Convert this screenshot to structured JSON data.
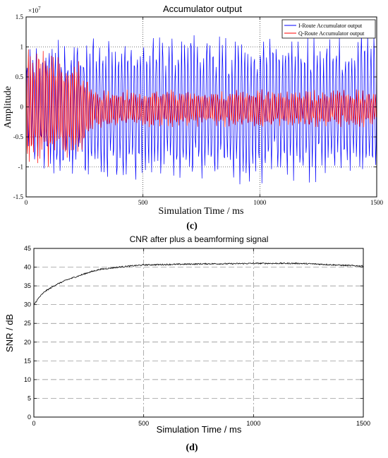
{
  "chart_data": [
    {
      "type": "line",
      "panel_label": "(c)",
      "title": "Accumulator output",
      "xlabel": "Simulation Time / ms",
      "ylabel": "Amplitude",
      "y_exponent_label": "×10",
      "y_exponent_power": "7",
      "xlim": [
        0,
        1500
      ],
      "ylim": [
        -1.5,
        1.5
      ],
      "x_ticks": [
        0,
        500,
        1000,
        1500
      ],
      "x_tick_labels": [
        "0",
        "500",
        "1000",
        "1500"
      ],
      "y_ticks": [
        -1.5,
        -1,
        -0.5,
        0,
        0.5,
        1,
        1.5
      ],
      "y_tick_labels": [
        "-1.5",
        "-1",
        "-0.5",
        "0",
        "0.5",
        "1",
        "1.5"
      ],
      "grid": "dotted",
      "legend_position": "top-right",
      "series": [
        {
          "name": "I-Route Accumulator output",
          "color": "#0000ff",
          "description_of_shape": "oscillates between about -1.3 and 1.3 across whole range after ~200 ms",
          "envelope": {
            "x": [
              0,
              200,
              1500
            ],
            "upper": [
              1.0,
              1.25,
              1.25
            ],
            "lower": [
              -1.0,
              -1.3,
              -1.3
            ]
          }
        },
        {
          "name": "Q-Route Accumulator output",
          "color": "#ff0000",
          "envelope": {
            "x": [
              0,
              100,
              230,
              300,
              1500
            ],
            "upper": [
              1.05,
              1.05,
              0.8,
              0.3,
              0.3
            ],
            "lower": [
              -1.05,
              -1.05,
              -0.8,
              -0.35,
              -0.35
            ]
          }
        }
      ]
    },
    {
      "type": "line",
      "panel_label": "(d)",
      "title": "CNR after plus a beamforming signal",
      "xlabel": "Simulation Time / ms",
      "ylabel": "SNR / dB",
      "xlim": [
        0,
        1500
      ],
      "ylim": [
        0,
        45
      ],
      "x_ticks": [
        0,
        500,
        1000,
        1500
      ],
      "x_tick_labels": [
        "0",
        "500",
        "1000",
        "1500"
      ],
      "y_ticks": [
        0,
        5,
        10,
        15,
        20,
        25,
        30,
        35,
        40,
        45
      ],
      "y_tick_labels": [
        "0",
        "5",
        "10",
        "15",
        "20",
        "25",
        "30",
        "35",
        "40",
        "45"
      ],
      "grid": "dash-dot",
      "series": [
        {
          "color": "#000000",
          "x": [
            0,
            25,
            50,
            100,
            150,
            200,
            250,
            300,
            400,
            500,
            600,
            700,
            800,
            900,
            1000,
            1100,
            1200,
            1300,
            1400,
            1500
          ],
          "values": [
            30,
            32,
            33.5,
            35.3,
            36.6,
            37.6,
            38.6,
            39.4,
            40.1,
            40.6,
            40.7,
            40.8,
            40.9,
            40.9,
            41.0,
            41.0,
            41.0,
            40.8,
            40.5,
            40.3
          ]
        }
      ]
    }
  ]
}
